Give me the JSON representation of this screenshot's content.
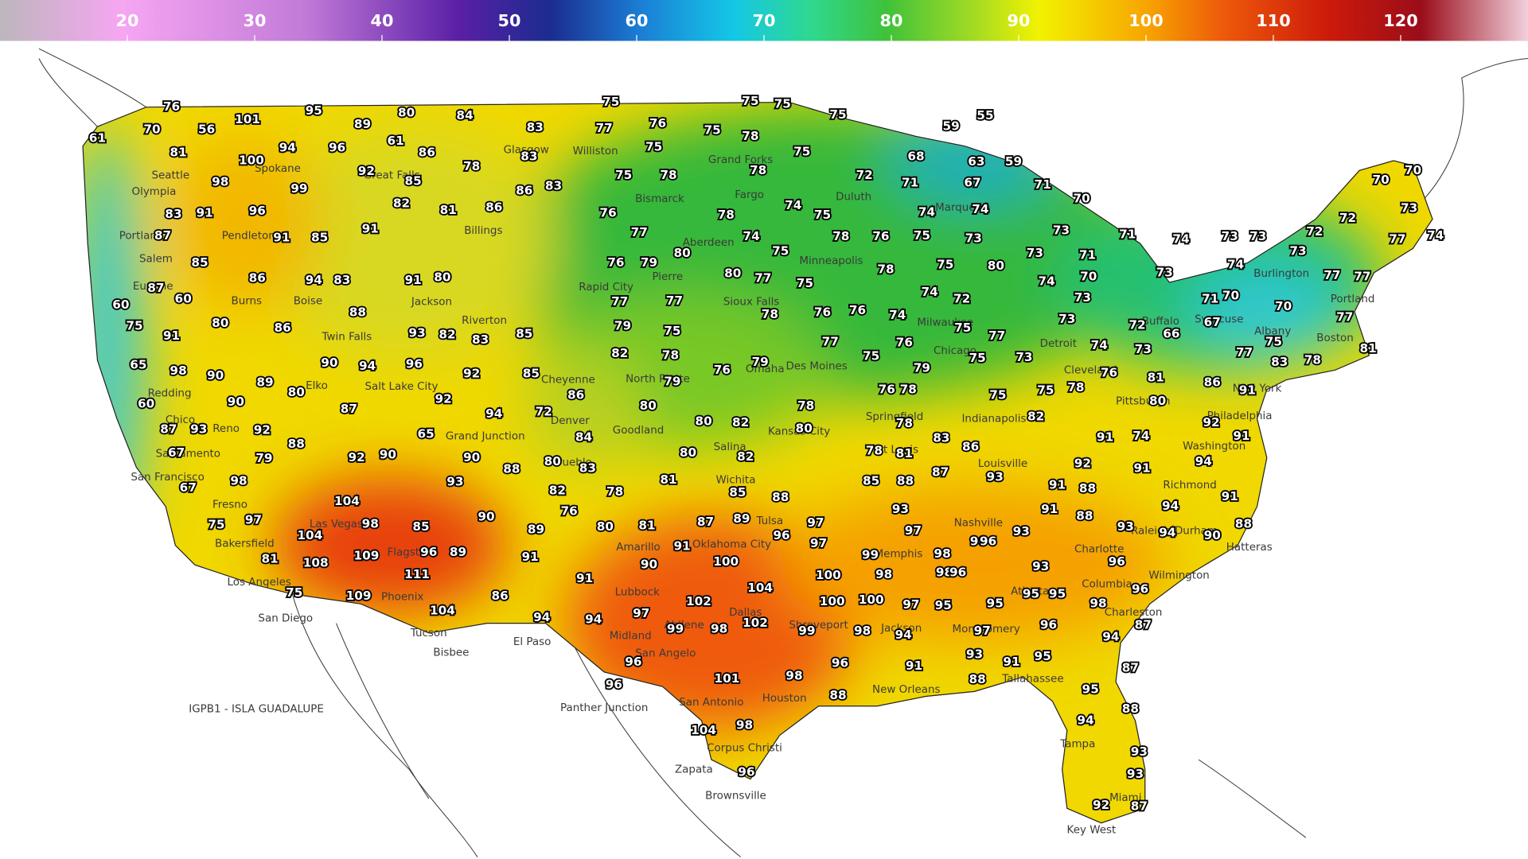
{
  "colorbar": {
    "lim": [
      10,
      130
    ],
    "ticks": [
      20,
      30,
      40,
      50,
      60,
      70,
      80,
      90,
      100,
      110,
      120
    ]
  },
  "temperatures": [
    76,
    70,
    61,
    56,
    101,
    94,
    81,
    100,
    98,
    95,
    89,
    96,
    61,
    80,
    84,
    86,
    92,
    78,
    85,
    99,
    82,
    81,
    86,
    83,
    83,
    86,
    83,
    83,
    91,
    96,
    87,
    91,
    85,
    91,
    85,
    86,
    94,
    83,
    91,
    80,
    87,
    60,
    60,
    80,
    86,
    75,
    91,
    88,
    93,
    82,
    83,
    85,
    65,
    98,
    90,
    89,
    80,
    90,
    94,
    96,
    92,
    85,
    86,
    60,
    90,
    92,
    94,
    72,
    84,
    87,
    93,
    92,
    88,
    87,
    65,
    67,
    79,
    92,
    90,
    90,
    88,
    80,
    83,
    98,
    67,
    93,
    104,
    98,
    85,
    75,
    97,
    104,
    90,
    89,
    76,
    82,
    78,
    108,
    81,
    109,
    96,
    89,
    91,
    111,
    109,
    75,
    104,
    86,
    91,
    94,
    94,
    75,
    77,
    76,
    75,
    75,
    75,
    75,
    78,
    75,
    75,
    78,
    75,
    78,
    76,
    77,
    76,
    79,
    80,
    78,
    74,
    80,
    77,
    75,
    75,
    74,
    75,
    77,
    77,
    78,
    79,
    75,
    82,
    78,
    77,
    79,
    76,
    79,
    80,
    80,
    82,
    78,
    80,
    80,
    82,
    81,
    85,
    88,
    87,
    89,
    96,
    81,
    80,
    91,
    90,
    100,
    97,
    102,
    104,
    102,
    98,
    99,
    99,
    96,
    96,
    101,
    98,
    104,
    98,
    96,
    96,
    88,
    59,
    55,
    68,
    63,
    59,
    72,
    71,
    67,
    71,
    70,
    78,
    76,
    75,
    73,
    74,
    74,
    73,
    71,
    71,
    73,
    80,
    70,
    74,
    78,
    75,
    74,
    72,
    76,
    76,
    74,
    75,
    77,
    73,
    73,
    75,
    79,
    76,
    78,
    76,
    78,
    75,
    73,
    75,
    75,
    78,
    76,
    74,
    72,
    73,
    97,
    97,
    99,
    100,
    100,
    100,
    98,
    94,
    93,
    97,
    98,
    98,
    96,
    85,
    88,
    87,
    78,
    81,
    83,
    86,
    93,
    82,
    92,
    91,
    74,
    91,
    91,
    88,
    91,
    88,
    93,
    96,
    93,
    96,
    98,
    97,
    95,
    95,
    95,
    95,
    96,
    97,
    93,
    91,
    95,
    91,
    88,
    96,
    96,
    98,
    87,
    94,
    87,
    95,
    88,
    94,
    93,
    93,
    92,
    87,
    93,
    94,
    94,
    90,
    88,
    91,
    94,
    92,
    91,
    81,
    80,
    86,
    91,
    77,
    75,
    83,
    78,
    81,
    66,
    67,
    70,
    71,
    70,
    77,
    73,
    74,
    73,
    74,
    73,
    73,
    72,
    77,
    77,
    72,
    77,
    73,
    74,
    70,
    70
  ],
  "cities": [
    "Seattle",
    "Olympia",
    "Portland",
    "Salem",
    "Eugene",
    "Pendleton",
    "Spokane",
    "Boise",
    "Burns",
    "Great Falls",
    "Billings",
    "Glasgow",
    "Williston",
    "Bismarck",
    "Fargo",
    "Grand Forks",
    "Duluth",
    "Marquette",
    "Rapid City",
    "Pierre",
    "Aberdeen",
    "Sioux Falls",
    "Minneapolis",
    "Riverton",
    "Jackson",
    "Twin Falls",
    "Elko",
    "Reno",
    "Redding",
    "Chico",
    "Sacramento",
    "San Francisco",
    "Fresno",
    "Bakersfield",
    "Los Angeles",
    "San Diego",
    "Las Vegas",
    "Flagstaff",
    "Phoenix",
    "Tucson",
    "Bisbee",
    "Salt Lake City",
    "Grand Junction",
    "Denver",
    "Pueblo",
    "Cheyenne",
    "North Platte",
    "Goodland",
    "Wichita",
    "Salina",
    "Kansas City",
    "Omaha",
    "Des Moines",
    "Oklahoma City",
    "Tulsa",
    "Amarillo",
    "Lubbock",
    "El Paso",
    "Midland",
    "Abilene",
    "Dallas",
    "Shreveport",
    "San Angelo",
    "San Antonio",
    "Houston",
    "Corpus Christi",
    "Brownsville",
    "Zapata",
    "Panther Junction",
    "New Orleans",
    "Jackson",
    "Memphis",
    "Nashville",
    "Atlanta",
    "Montgomery",
    "Tallahassee",
    "Tampa",
    "Miami",
    "Key West",
    "Charleston",
    "Columbia",
    "Charlotte",
    "Raleigh-Durham",
    "Hatteras",
    "Wilmington",
    "Richmond",
    "Washington",
    "Philadelphia",
    "New York",
    "Boston",
    "Pittsburgh",
    "Cleveland",
    "Detroit",
    "Chicago",
    "Milwaukee",
    "Indianapolis",
    "Louisville",
    "St Louis",
    "Springfield",
    "Albany",
    "Syracuse",
    "Buffalo",
    "Burlington",
    "Portland"
  ],
  "station_note": "IGPB1 - ISLA GUADALUPE"
}
